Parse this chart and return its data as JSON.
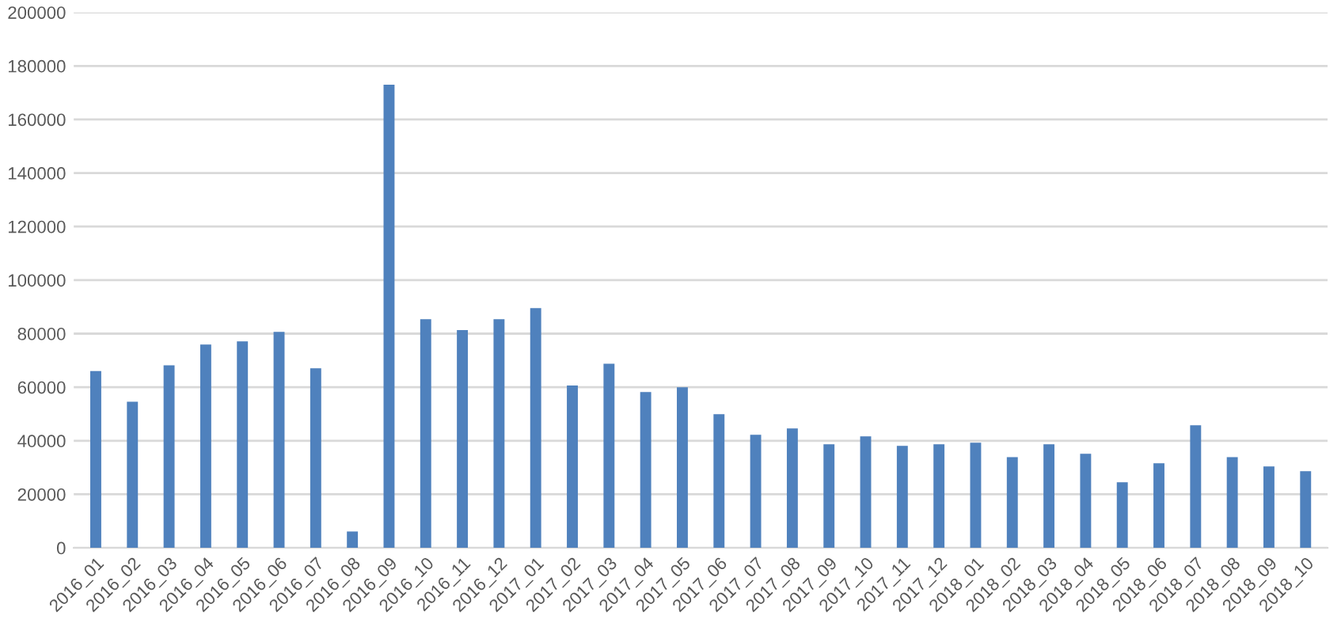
{
  "chart_data": {
    "type": "bar",
    "categories": [
      "2016_01",
      "2016_02",
      "2016_03",
      "2016_04",
      "2016_05",
      "2016_06",
      "2016_07",
      "2016_08",
      "2016_09",
      "2016_10",
      "2016_11",
      "2016_12",
      "2017_01",
      "2017_02",
      "2017_03",
      "2017_04",
      "2017_05",
      "2017_06",
      "2017_07",
      "2017_08",
      "2017_09",
      "2017_10",
      "2017_11",
      "2017_12",
      "2018_01",
      "2018_02",
      "2018_03",
      "2018_04",
      "2018_05",
      "2018_06",
      "2018_07",
      "2018_08",
      "2018_09",
      "2018_10"
    ],
    "values": [
      66000,
      54600,
      68200,
      75900,
      77100,
      80700,
      67100,
      6100,
      173000,
      85400,
      81300,
      85400,
      89500,
      60600,
      68800,
      58200,
      60000,
      49900,
      42200,
      44600,
      38700,
      41600,
      38100,
      38700,
      39300,
      33900,
      38700,
      35100,
      24500,
      31600,
      45800,
      33900,
      30400,
      28600
    ],
    "color": "#4f81bd",
    "ylim": [
      0,
      200000
    ],
    "yticks": [
      0,
      20000,
      40000,
      60000,
      80000,
      100000,
      120000,
      140000,
      160000,
      180000,
      200000
    ],
    "grid": "y",
    "legend": false
  }
}
